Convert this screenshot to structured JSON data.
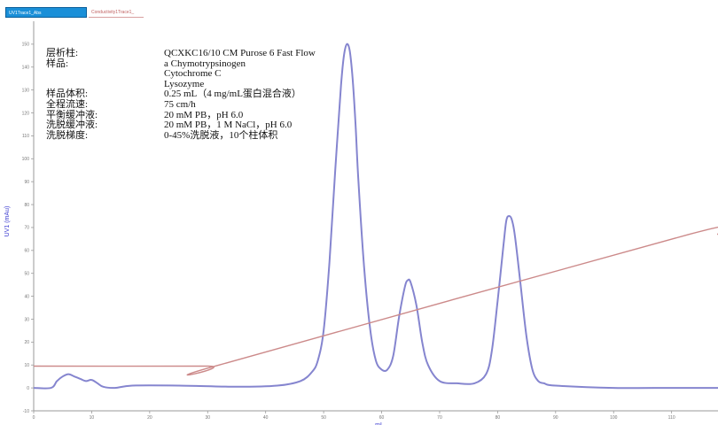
{
  "tabs": [
    {
      "label": "UV1Trace1_Abs",
      "active": true
    },
    {
      "label": "Conductivity1Trace1_",
      "active": false
    }
  ],
  "info": [
    {
      "label": "层析柱:",
      "value": "QCXKC16/10 CM Purose 6 Fast Flow"
    },
    {
      "label": "样品:",
      "value": "a Chymotrypsinogen"
    },
    {
      "label": "",
      "value": "Cytochrome C"
    },
    {
      "label": "",
      "value": "Lysozyme"
    },
    {
      "label": "样品体积:",
      "value": "0.25 mL（4 mg/mL蛋白混合液）"
    },
    {
      "label": "全程流速:",
      "value": "75 cm/h"
    },
    {
      "label": "平衡缓冲液:",
      "value": "20 mM PB，pH 6.0"
    },
    {
      "label": "洗脱缓冲液:",
      "value": "20 mM PB，1 M NaCl，pH 6.0"
    },
    {
      "label": "洗脱梯度:",
      "value": "0-45%洗脱液，10个柱体积"
    }
  ],
  "chart_data": {
    "type": "line",
    "title": "",
    "xlabel": "mL",
    "ylabel": "UV1 (mAu)",
    "xlim": [
      0,
      118
    ],
    "ylim": [
      -10,
      160
    ],
    "x_ticks": [
      0,
      10,
      20,
      30,
      40,
      50,
      60,
      70,
      80,
      90,
      100,
      110
    ],
    "y_ticks": [
      -10,
      0,
      10,
      20,
      30,
      40,
      50,
      60,
      70,
      80,
      90,
      100,
      110,
      120,
      130,
      140,
      150
    ],
    "grid": false,
    "legend": "none",
    "colors": {
      "uv": "#8585cf",
      "conductivity": "#cc8a8a"
    },
    "series": [
      {
        "name": "UV1Trace1_Abs",
        "x": [
          0,
          3,
          4,
          5,
          6,
          7,
          8,
          9,
          10,
          11,
          12,
          14,
          17,
          25,
          35,
          42,
          46,
          48,
          49,
          50,
          51,
          52,
          53,
          53.5,
          54,
          54.5,
          55,
          55.5,
          56,
          57,
          58,
          59,
          60,
          61,
          62,
          63,
          64,
          64.5,
          65,
          66,
          67,
          68,
          70,
          73,
          76,
          78,
          79,
          80,
          81,
          81.5,
          82,
          82.5,
          83,
          84,
          85,
          86,
          87,
          88,
          90,
          100,
          110,
          118
        ],
        "y": [
          0,
          0,
          3,
          5,
          6,
          5,
          4,
          3,
          3.5,
          2,
          0.5,
          0,
          1,
          1,
          0.5,
          1,
          3,
          7,
          12,
          25,
          55,
          95,
          132,
          145,
          150,
          147,
          135,
          115,
          90,
          52,
          26,
          12,
          8,
          8,
          14,
          31,
          44,
          47,
          46,
          36,
          20,
          10,
          3,
          2,
          2,
          6,
          16,
          38,
          62,
          73,
          75,
          73,
          66,
          44,
          22,
          8,
          3,
          2,
          1,
          0,
          0,
          0
        ]
      },
      {
        "name": "Conductivity1Trace1_",
        "x": [
          0,
          30,
          32,
          113,
          118
        ],
        "y": [
          9.5,
          9.5,
          10,
          67,
          67
        ]
      }
    ]
  }
}
